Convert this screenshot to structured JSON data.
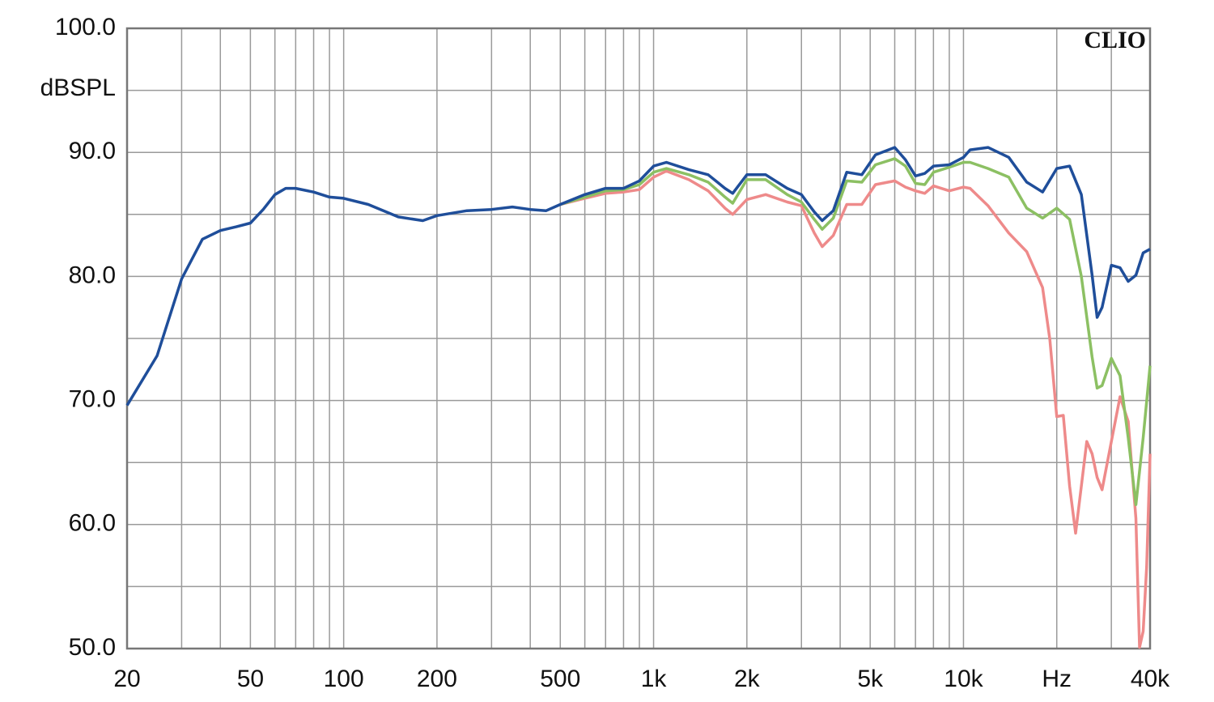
{
  "chart_data": {
    "type": "line",
    "ylabel": "dBSPL",
    "annotation": "CLIO",
    "xscale": "log",
    "grid": true,
    "xlim": [
      20,
      40000
    ],
    "ylim": [
      50,
      100
    ],
    "xticks": [
      20,
      50,
      100,
      200,
      500,
      {
        "value": 1000,
        "label": "1k"
      },
      {
        "value": 2000,
        "label": "2k"
      },
      {
        "value": 5000,
        "label": "5k"
      },
      {
        "value": 10000,
        "label": "10k"
      },
      {
        "value": 20000,
        "label": "Hz"
      },
      {
        "value": 40000,
        "label": "40k"
      }
    ],
    "x_minor_ticks": [
      30,
      40,
      60,
      70,
      80,
      90,
      300,
      400,
      600,
      700,
      800,
      900,
      3000,
      4000,
      6000,
      7000,
      8000,
      9000,
      30000
    ],
    "yticks": [
      {
        "value": 50,
        "label": "50.0"
      },
      {
        "value": 60,
        "label": "60.0"
      },
      {
        "value": 70,
        "label": "70.0"
      },
      {
        "value": 80,
        "label": "80.0"
      },
      {
        "value": 90,
        "label": "90.0"
      },
      {
        "value": 100,
        "label": "100.0"
      }
    ],
    "y_minor_ticks": [
      55,
      65,
      75,
      85,
      95
    ],
    "series": [
      {
        "color": "#ee8a8a",
        "x": [
          500,
          600,
          700,
          800,
          900,
          1000,
          1100,
          1300,
          1500,
          1700,
          1800,
          2000,
          2300,
          2700,
          3000,
          3300,
          3500,
          3800,
          4200,
          4700,
          5200,
          6000,
          6500,
          7000,
          7500,
          8000,
          9000,
          10000,
          10500,
          12000,
          14000,
          16000,
          18000,
          19000,
          20000,
          21000,
          22000,
          23000,
          24000,
          25000,
          26000,
          27000,
          28000,
          30000,
          32000,
          34000,
          36000,
          37000,
          38000,
          39000,
          40000
        ],
        "values": [
          85.8,
          86.3,
          86.7,
          86.8,
          87.0,
          88.0,
          88.5,
          87.8,
          86.9,
          85.5,
          85.0,
          86.2,
          86.6,
          86.0,
          85.7,
          83.5,
          82.4,
          83.3,
          85.8,
          85.8,
          87.4,
          87.7,
          87.2,
          86.9,
          86.7,
          87.3,
          86.9,
          87.2,
          87.1,
          85.7,
          83.5,
          82.0,
          79.1,
          74.9,
          68.7,
          68.8,
          63.1,
          59.3,
          63.1,
          66.7,
          65.7,
          63.8,
          62.8,
          66.7,
          70.3,
          68.3,
          60.5,
          50.1,
          51.4,
          56.6,
          65.7
        ]
      },
      {
        "color": "#8cc063",
        "x": [
          500,
          600,
          700,
          800,
          900,
          1000,
          1100,
          1300,
          1500,
          1700,
          1800,
          2000,
          2300,
          2700,
          3000,
          3300,
          3500,
          3800,
          4200,
          4700,
          5200,
          6000,
          6500,
          7000,
          7500,
          8000,
          9000,
          10000,
          10500,
          12000,
          14000,
          16000,
          18000,
          20000,
          22000,
          24000,
          26000,
          27000,
          28000,
          30000,
          32000,
          34000,
          36000,
          38000,
          40000
        ],
        "values": [
          85.8,
          86.4,
          86.9,
          87.0,
          87.4,
          88.4,
          88.7,
          88.2,
          87.6,
          86.4,
          85.9,
          87.8,
          87.8,
          86.6,
          86.0,
          84.6,
          83.8,
          84.7,
          87.7,
          87.6,
          89.0,
          89.5,
          88.9,
          87.5,
          87.4,
          88.4,
          88.8,
          89.2,
          89.2,
          88.7,
          88.0,
          85.5,
          84.7,
          85.5,
          84.6,
          80.0,
          73.5,
          71.0,
          71.2,
          73.4,
          72.0,
          67.0,
          61.6,
          67.0,
          72.8
        ]
      },
      {
        "color": "#1f4e9a",
        "x": [
          20,
          25,
          30,
          35,
          40,
          45,
          50,
          55,
          60,
          65,
          70,
          80,
          90,
          100,
          120,
          150,
          180,
          200,
          250,
          300,
          350,
          400,
          450,
          500,
          600,
          700,
          800,
          900,
          1000,
          1100,
          1300,
          1500,
          1700,
          1800,
          2000,
          2300,
          2700,
          3000,
          3300,
          3500,
          3800,
          4200,
          4700,
          5200,
          6000,
          6500,
          7000,
          7500,
          8000,
          9000,
          10000,
          10500,
          12000,
          14000,
          16000,
          18000,
          20000,
          22000,
          24000,
          26000,
          27000,
          28000,
          30000,
          32000,
          34000,
          36000,
          38000,
          40000
        ],
        "values": [
          69.6,
          73.6,
          79.8,
          83.0,
          83.7,
          84.0,
          84.3,
          85.4,
          86.6,
          87.1,
          87.1,
          86.8,
          86.4,
          86.3,
          85.8,
          84.8,
          84.5,
          84.9,
          85.3,
          85.4,
          85.6,
          85.4,
          85.3,
          85.8,
          86.6,
          87.1,
          87.1,
          87.7,
          88.9,
          89.2,
          88.6,
          88.2,
          87.1,
          86.7,
          88.2,
          88.2,
          87.1,
          86.6,
          85.2,
          84.5,
          85.3,
          88.4,
          88.2,
          89.8,
          90.4,
          89.4,
          88.1,
          88.3,
          88.9,
          89.0,
          89.6,
          90.2,
          90.4,
          89.6,
          87.6,
          86.8,
          88.7,
          88.9,
          86.6,
          80.1,
          76.7,
          77.5,
          80.9,
          80.7,
          79.6,
          80.1,
          81.9,
          82.2
        ]
      }
    ]
  }
}
